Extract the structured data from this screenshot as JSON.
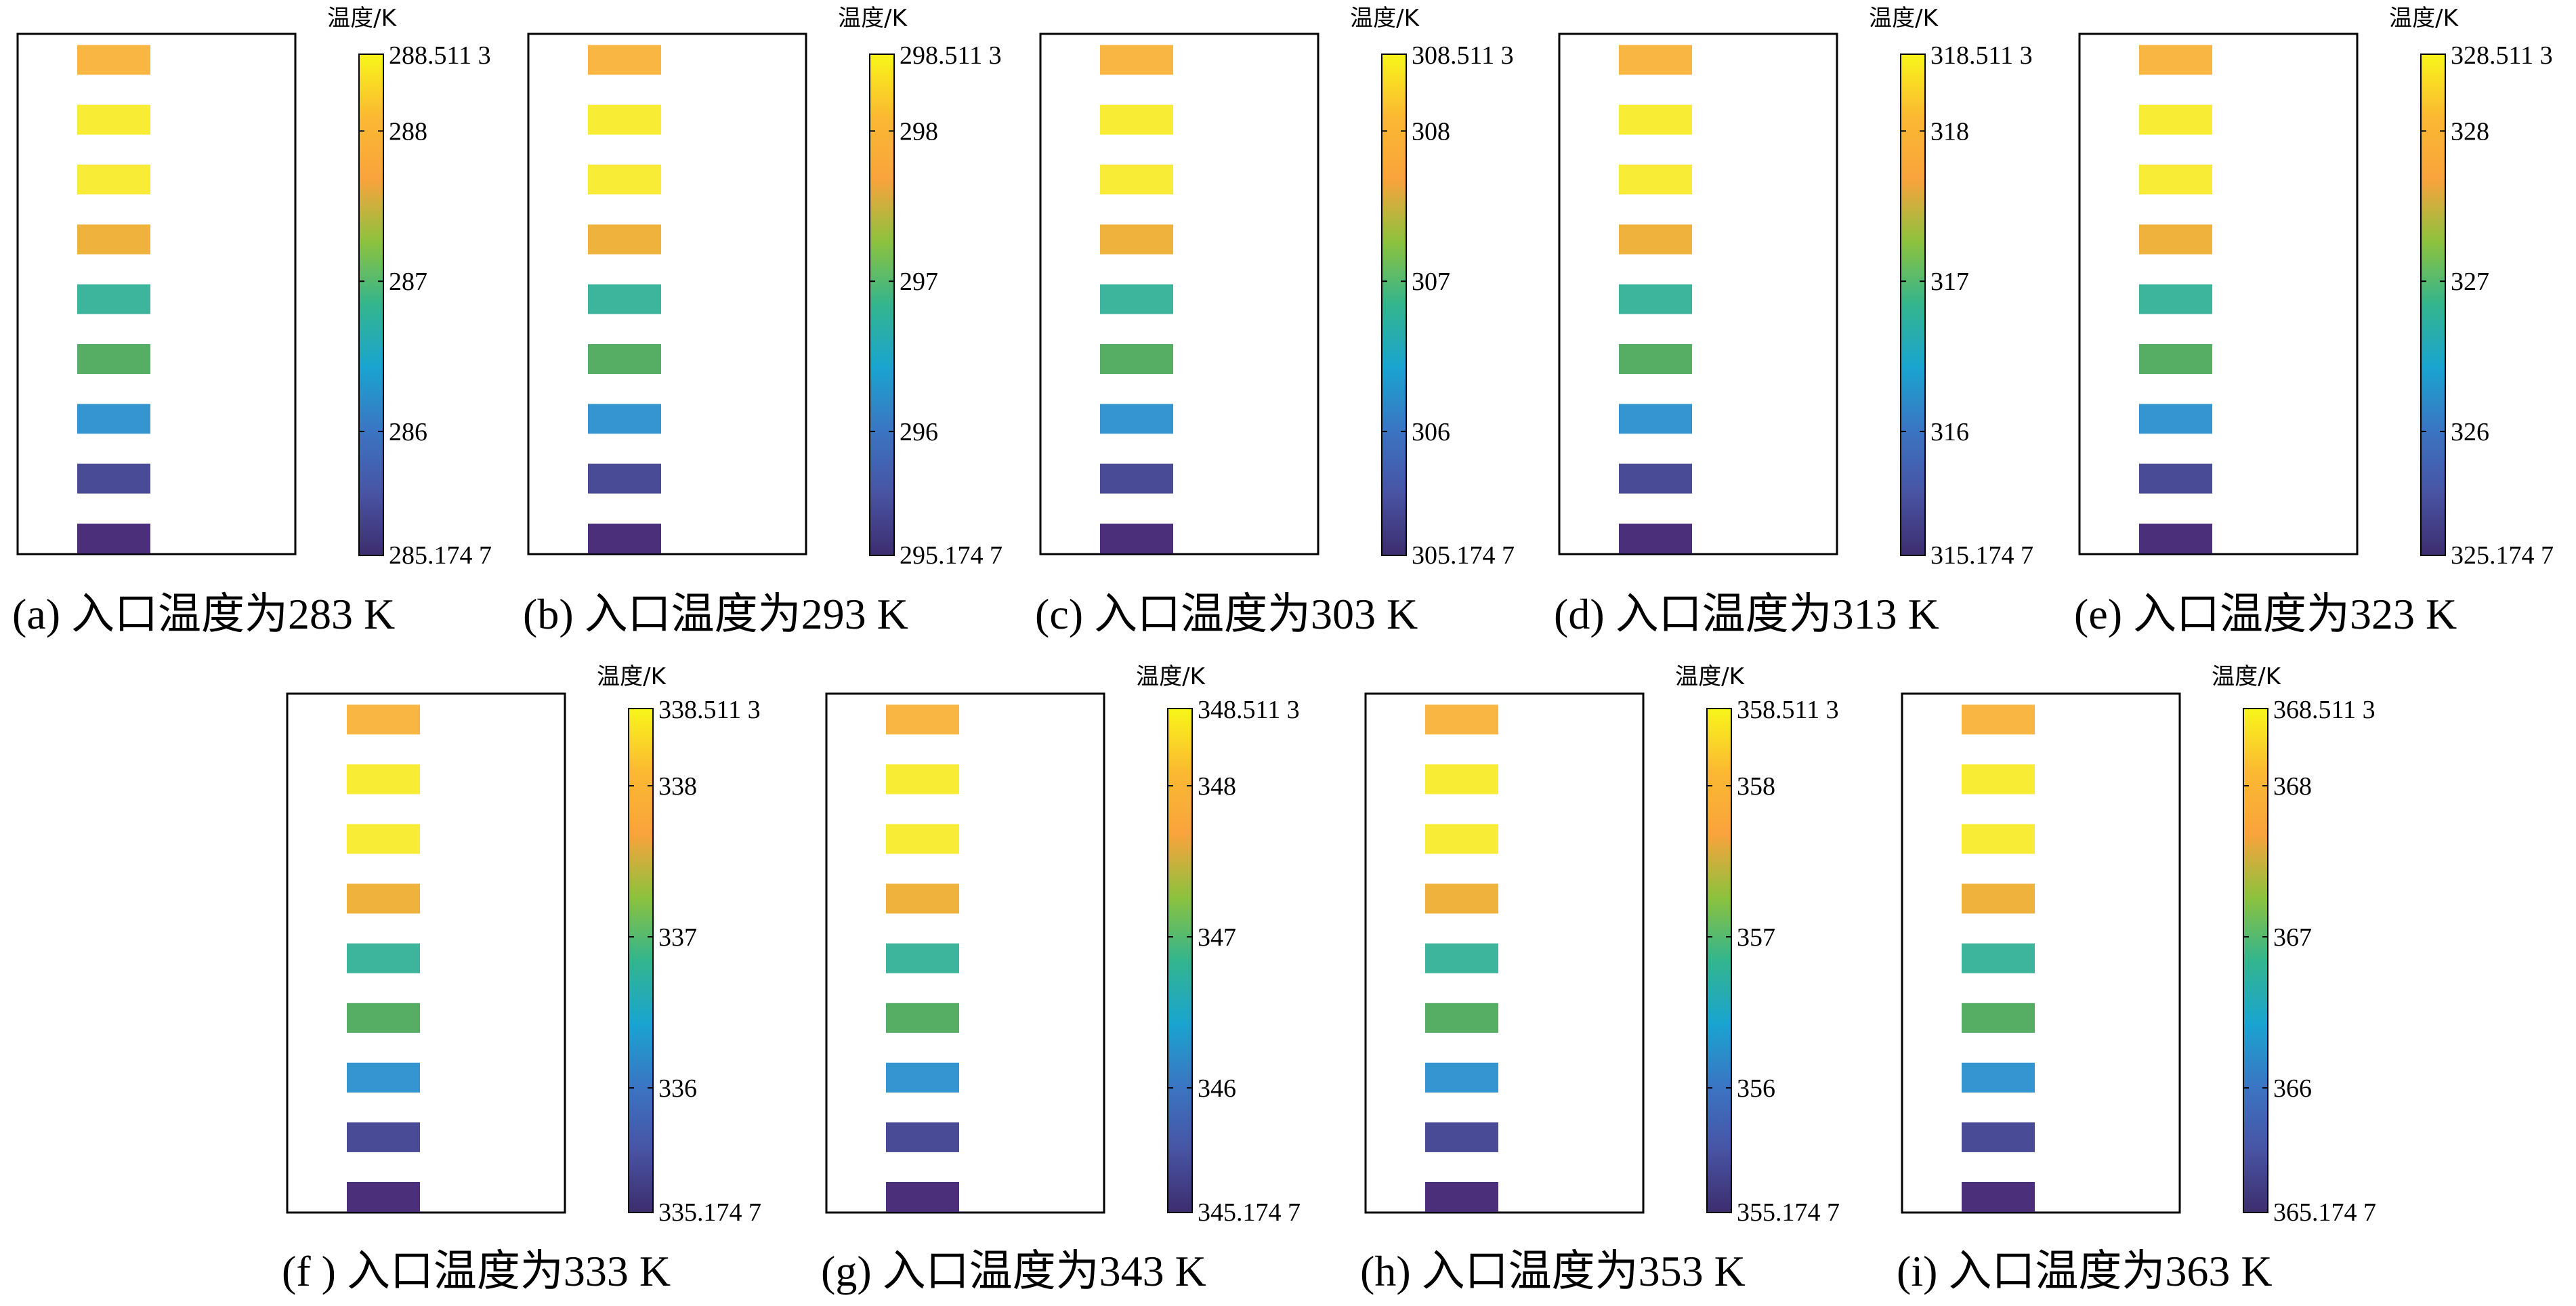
{
  "colorbar_title": "温度/K",
  "block_colors": [
    "#FAB643",
    "#F8EC34",
    "#F8EC36",
    "#EFB33D",
    "#3DB49C",
    "#55AE63",
    "#3595D1",
    "#4A4B97",
    "#4B2F7A"
  ],
  "colormap_stops": [
    "#3D2D6E",
    "#4854A4",
    "#3A75C3",
    "#1AA4D0",
    "#33B58E",
    "#8CC23E",
    "#F9A33C",
    "#FBB932",
    "#F8F619"
  ],
  "panels": [
    {
      "caption": "(a)  入口温度为283 K",
      "inlet_K": 283,
      "cb_max": 288.5113,
      "cb_min": 285.1747,
      "max_label": "288.511 3",
      "min_label": "285.174 7",
      "ticks": [
        {
          "value": 288,
          "label": "288"
        },
        {
          "value": 287,
          "label": "287"
        },
        {
          "value": 286,
          "label": "286"
        }
      ]
    },
    {
      "caption": "(b)  入口温度为293 K",
      "inlet_K": 293,
      "cb_max": 298.5113,
      "cb_min": 295.1747,
      "max_label": "298.511 3",
      "min_label": "295.174 7",
      "ticks": [
        {
          "value": 298,
          "label": "298"
        },
        {
          "value": 297,
          "label": "297"
        },
        {
          "value": 296,
          "label": "296"
        }
      ]
    },
    {
      "caption": "(c)  入口温度为303 K",
      "inlet_K": 303,
      "cb_max": 308.5113,
      "cb_min": 305.1747,
      "max_label": "308.511 3",
      "min_label": "305.174 7",
      "ticks": [
        {
          "value": 308,
          "label": "308"
        },
        {
          "value": 307,
          "label": "307"
        },
        {
          "value": 306,
          "label": "306"
        }
      ]
    },
    {
      "caption": "(d)  入口温度为313 K",
      "inlet_K": 313,
      "cb_max": 318.5113,
      "cb_min": 315.1747,
      "max_label": "318.511 3",
      "min_label": "315.174 7",
      "ticks": [
        {
          "value": 318,
          "label": "318"
        },
        {
          "value": 317,
          "label": "317"
        },
        {
          "value": 316,
          "label": "316"
        }
      ]
    },
    {
      "caption": "(e)  入口温度为323 K",
      "inlet_K": 323,
      "cb_max": 328.5113,
      "cb_min": 325.1747,
      "max_label": "328.511 3",
      "min_label": "325.174 7",
      "ticks": [
        {
          "value": 328,
          "label": "328"
        },
        {
          "value": 327,
          "label": "327"
        },
        {
          "value": 326,
          "label": "326"
        }
      ]
    },
    {
      "caption": "(f )  入口温度为333 K",
      "inlet_K": 333,
      "cb_max": 338.5113,
      "cb_min": 335.1747,
      "max_label": "338.511 3",
      "min_label": "335.174 7",
      "ticks": [
        {
          "value": 338,
          "label": "338"
        },
        {
          "value": 337,
          "label": "337"
        },
        {
          "value": 336,
          "label": "336"
        }
      ]
    },
    {
      "caption": "(g)  入口温度为343 K",
      "inlet_K": 343,
      "cb_max": 348.5113,
      "cb_min": 345.1747,
      "max_label": "348.511 3",
      "min_label": "345.174 7",
      "ticks": [
        {
          "value": 348,
          "label": "348"
        },
        {
          "value": 347,
          "label": "347"
        },
        {
          "value": 346,
          "label": "346"
        }
      ]
    },
    {
      "caption": "(h)  入口温度为353 K",
      "inlet_K": 353,
      "cb_max": 358.5113,
      "cb_min": 355.1747,
      "max_label": "358.511 3",
      "min_label": "355.174 7",
      "ticks": [
        {
          "value": 358,
          "label": "358"
        },
        {
          "value": 357,
          "label": "357"
        },
        {
          "value": 356,
          "label": "356"
        }
      ]
    },
    {
      "caption": "(i)  入口温度为363 K",
      "inlet_K": 363,
      "cb_max": 368.5113,
      "cb_min": 365.1747,
      "max_label": "368.511 3",
      "min_label": "365.174 7",
      "ticks": [
        {
          "value": 368,
          "label": "368"
        },
        {
          "value": 367,
          "label": "367"
        },
        {
          "value": 366,
          "label": "366"
        }
      ]
    }
  ]
}
